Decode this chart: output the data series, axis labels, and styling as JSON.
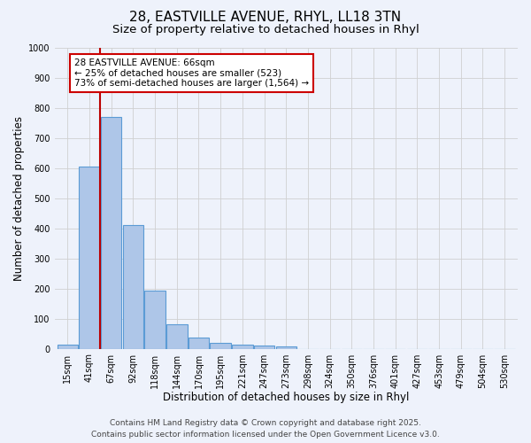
{
  "title_line1": "28, EASTVILLE AVENUE, RHYL, LL18 3TN",
  "title_line2": "Size of property relative to detached houses in Rhyl",
  "xlabel": "Distribution of detached houses by size in Rhyl",
  "ylabel": "Number of detached properties",
  "bar_labels": [
    "15sqm",
    "41sqm",
    "67sqm",
    "92sqm",
    "118sqm",
    "144sqm",
    "170sqm",
    "195sqm",
    "221sqm",
    "247sqm",
    "273sqm",
    "298sqm",
    "324sqm",
    "350sqm",
    "376sqm",
    "401sqm",
    "427sqm",
    "453sqm",
    "479sqm",
    "504sqm",
    "530sqm"
  ],
  "bar_values": [
    15,
    605,
    770,
    410,
    192,
    80,
    37,
    20,
    15,
    10,
    7,
    0,
    0,
    0,
    0,
    0,
    0,
    0,
    0,
    0,
    0
  ],
  "bar_color": "#aec6e8",
  "bar_edgecolor": "#5b9bd5",
  "bar_linewidth": 0.8,
  "grid_color": "#d0d0d0",
  "background_color": "#eef2fb",
  "red_line_x": 2,
  "red_line_color": "#bb0000",
  "annotation_line1": "28 EASTVILLE AVENUE: 66sqm",
  "annotation_line2": "← 25% of detached houses are smaller (523)",
  "annotation_line3": "73% of semi-detached houses are larger (1,564) →",
  "annotation_box_edgecolor": "#cc0000",
  "ylim": [
    0,
    1000
  ],
  "yticks": [
    0,
    100,
    200,
    300,
    400,
    500,
    600,
    700,
    800,
    900,
    1000
  ],
  "footer_line1": "Contains HM Land Registry data © Crown copyright and database right 2025.",
  "footer_line2": "Contains public sector information licensed under the Open Government Licence v3.0.",
  "title_fontsize": 11,
  "subtitle_fontsize": 9.5,
  "axis_label_fontsize": 8.5,
  "tick_fontsize": 7,
  "annotation_fontsize": 7.5,
  "footer_fontsize": 6.5
}
